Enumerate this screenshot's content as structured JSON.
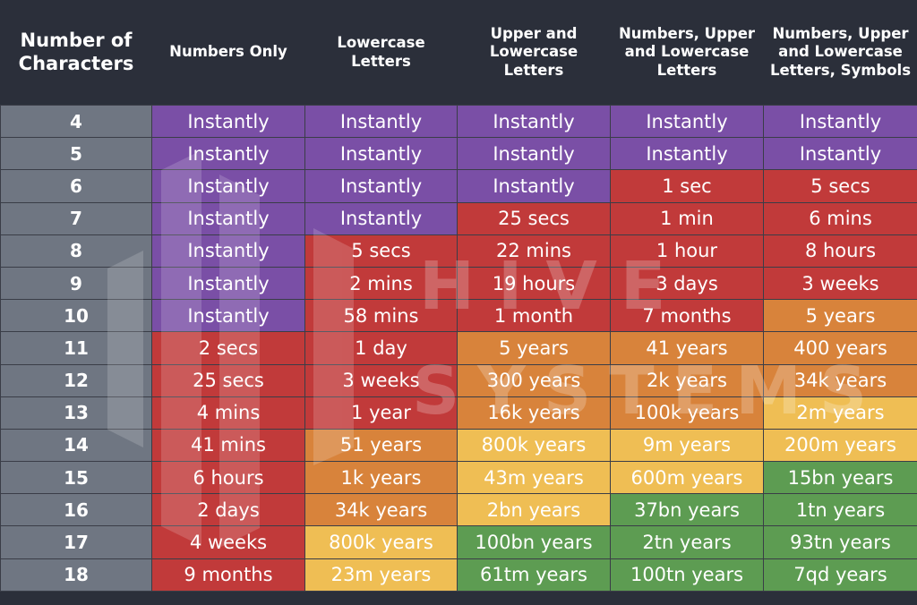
{
  "chart_data": {
    "type": "table",
    "headers": [
      "Number of Characters",
      "Numbers Only",
      "Lowercase Letters",
      "Upper and Lowercase Letters",
      "Numbers, Upper and Lowercase Letters",
      "Numbers, Upper and Lowercase Letters, Symbols"
    ],
    "header_lines": [
      [
        "Number of",
        "Characters"
      ],
      [
        "Numbers Only"
      ],
      [
        "Lowercase",
        "Letters"
      ],
      [
        "Upper and",
        "Lowercase",
        "Letters"
      ],
      [
        "Numbers, Upper",
        "and Lowercase",
        "Letters"
      ],
      [
        "Numbers, Upper",
        "and Lowercase",
        "Letters, Symbols"
      ]
    ],
    "rows": [
      {
        "chars": "4",
        "values": [
          "Instantly",
          "Instantly",
          "Instantly",
          "Instantly",
          "Instantly"
        ],
        "colors": [
          "purple",
          "purple",
          "purple",
          "purple",
          "purple"
        ]
      },
      {
        "chars": "5",
        "values": [
          "Instantly",
          "Instantly",
          "Instantly",
          "Instantly",
          "Instantly"
        ],
        "colors": [
          "purple",
          "purple",
          "purple",
          "purple",
          "purple"
        ]
      },
      {
        "chars": "6",
        "values": [
          "Instantly",
          "Instantly",
          "Instantly",
          "1 sec",
          "5 secs"
        ],
        "colors": [
          "purple",
          "purple",
          "purple",
          "red",
          "red"
        ]
      },
      {
        "chars": "7",
        "values": [
          "Instantly",
          "Instantly",
          "25 secs",
          "1 min",
          "6 mins"
        ],
        "colors": [
          "purple",
          "purple",
          "red",
          "red",
          "red"
        ]
      },
      {
        "chars": "8",
        "values": [
          "Instantly",
          "5 secs",
          "22 mins",
          "1 hour",
          "8 hours"
        ],
        "colors": [
          "purple",
          "red",
          "red",
          "red",
          "red"
        ]
      },
      {
        "chars": "9",
        "values": [
          "Instantly",
          "2 mins",
          "19 hours",
          "3 days",
          "3 weeks"
        ],
        "colors": [
          "purple",
          "red",
          "red",
          "red",
          "red"
        ]
      },
      {
        "chars": "10",
        "values": [
          "Instantly",
          "58 mins",
          "1 month",
          "7 months",
          "5 years"
        ],
        "colors": [
          "purple",
          "red",
          "red",
          "red",
          "orange"
        ]
      },
      {
        "chars": "11",
        "values": [
          "2 secs",
          "1 day",
          "5 years",
          "41 years",
          "400 years"
        ],
        "colors": [
          "red",
          "red",
          "orange",
          "orange",
          "orange"
        ]
      },
      {
        "chars": "12",
        "values": [
          "25 secs",
          "3 weeks",
          "300 years",
          "2k years",
          "34k years"
        ],
        "colors": [
          "red",
          "red",
          "orange",
          "orange",
          "orange"
        ]
      },
      {
        "chars": "13",
        "values": [
          "4 mins",
          "1 year",
          "16k years",
          "100k years",
          "2m years"
        ],
        "colors": [
          "red",
          "red",
          "orange",
          "orange",
          "yellow"
        ]
      },
      {
        "chars": "14",
        "values": [
          "41 mins",
          "51 years",
          "800k years",
          "9m years",
          "200m years"
        ],
        "colors": [
          "red",
          "orange",
          "yellow",
          "yellow",
          "yellow"
        ]
      },
      {
        "chars": "15",
        "values": [
          "6 hours",
          "1k years",
          "43m years",
          "600m years",
          "15bn years"
        ],
        "colors": [
          "red",
          "orange",
          "yellow",
          "yellow",
          "green"
        ]
      },
      {
        "chars": "16",
        "values": [
          "2 days",
          "34k years",
          "2bn years",
          "37bn years",
          "1tn years"
        ],
        "colors": [
          "red",
          "orange",
          "yellow",
          "green",
          "green"
        ]
      },
      {
        "chars": "17",
        "values": [
          "4 weeks",
          "800k years",
          "100bn years",
          "2tn years",
          "93tn years"
        ],
        "colors": [
          "red",
          "yellow",
          "green",
          "green",
          "green"
        ]
      },
      {
        "chars": "18",
        "values": [
          "9 months",
          "23m years",
          "61tm years",
          "100tn years",
          "7qd years"
        ],
        "colors": [
          "red",
          "yellow",
          "green",
          "green",
          "green"
        ]
      }
    ],
    "color_scale": {
      "purple": "#7a4fa6",
      "red": "#c13a3a",
      "orange": "#d8833b",
      "yellow": "#efbe54",
      "green": "#5d9c52"
    }
  },
  "watermark": {
    "line1": "HIVE",
    "line2": "SYSTEMS"
  }
}
